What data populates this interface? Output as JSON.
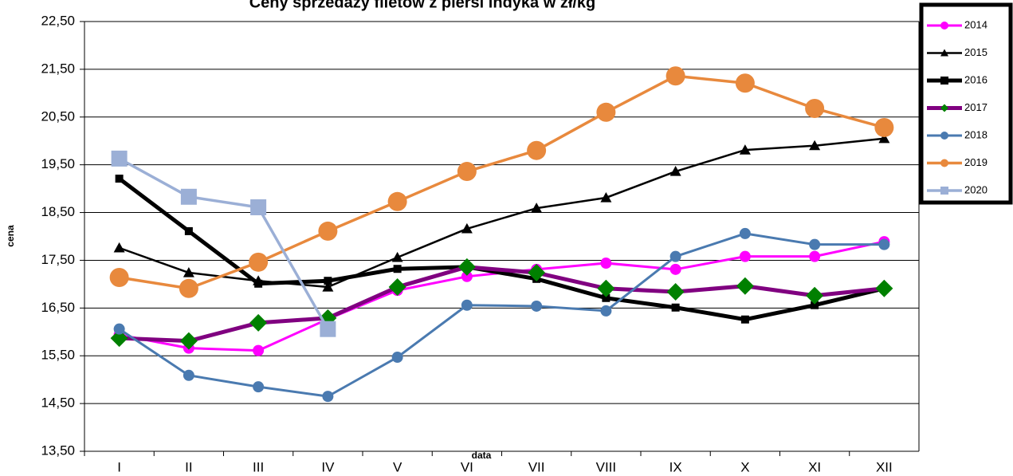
{
  "chart_data": {
    "type": "line",
    "title": "Ceny sprzedaży filetów z  piersi indyka w zł/kg",
    "x_label": "data",
    "y_label": "cena",
    "categories": [
      "I",
      "II",
      "III",
      "IV",
      "V",
      "VI",
      "VII",
      "VIII",
      "IX",
      "X",
      "XI",
      "XII"
    ],
    "ylim": [
      13.5,
      22.5
    ],
    "yticks": [
      {
        "value": 13.5,
        "label": "13,50"
      },
      {
        "value": 14.5,
        "label": "14,50"
      },
      {
        "value": 15.5,
        "label": "15,50"
      },
      {
        "value": 16.5,
        "label": "16,50"
      },
      {
        "value": 17.5,
        "label": "17,50"
      },
      {
        "value": 18.5,
        "label": "18,50"
      },
      {
        "value": 19.5,
        "label": "19,50"
      },
      {
        "value": 20.5,
        "label": "20,50"
      },
      {
        "value": 21.5,
        "label": "21,50"
      },
      {
        "value": 22.5,
        "label": "22,50"
      }
    ],
    "grid": true,
    "legend": "right",
    "series": [
      {
        "name": "2014",
        "color": "#ff00ff",
        "marker": "circle",
        "marker_color": "#ff00ff",
        "line_width": 3,
        "marker_size": 7,
        "values": [
          15.94,
          15.66,
          15.61,
          16.27,
          16.87,
          17.16,
          17.31,
          17.44,
          17.31,
          17.58,
          17.58,
          17.89
        ]
      },
      {
        "name": "2015",
        "color": "#000000",
        "marker": "triangle",
        "marker_color": "#000000",
        "line_width": 2.5,
        "marker_size": 7,
        "values": [
          17.76,
          17.24,
          17.07,
          16.94,
          17.56,
          18.16,
          18.59,
          18.81,
          19.36,
          19.81,
          19.9,
          20.05
        ]
      },
      {
        "name": "2016",
        "color": "#000000",
        "marker": "square",
        "marker_color": "#000000",
        "line_width": 5,
        "marker_size": 5,
        "values": [
          19.21,
          18.11,
          17.01,
          17.07,
          17.32,
          17.36,
          17.11,
          16.71,
          16.51,
          16.26,
          16.56,
          16.91
        ]
      },
      {
        "name": "2017",
        "color": "#800080",
        "marker": "diamond",
        "marker_color": "#008000",
        "line_width": 5,
        "marker_size": 11,
        "values": [
          15.87,
          15.81,
          16.19,
          16.29,
          16.94,
          17.36,
          17.24,
          16.91,
          16.84,
          16.96,
          16.76,
          16.91
        ]
      },
      {
        "name": "2018",
        "color": "#4a7ab0",
        "marker": "circle",
        "marker_color": "#4a7ab0",
        "line_width": 3,
        "marker_size": 7,
        "values": [
          16.06,
          15.09,
          14.85,
          14.65,
          15.47,
          16.56,
          16.54,
          16.44,
          17.58,
          18.06,
          17.83,
          17.83
        ]
      },
      {
        "name": "2019",
        "color": "#e8893d",
        "marker": "circle",
        "marker_color": "#e8893d",
        "line_width": 3.5,
        "marker_size": 12,
        "values": [
          17.14,
          16.91,
          17.46,
          18.11,
          18.73,
          19.36,
          19.8,
          20.6,
          21.36,
          21.21,
          20.68,
          20.28
        ]
      },
      {
        "name": "2020",
        "color": "#9bafd6",
        "marker": "square",
        "marker_color": "#9bafd6",
        "line_width": 3.5,
        "marker_size": 10,
        "values": [
          19.63,
          18.83,
          18.61,
          16.06,
          null,
          null,
          null,
          null,
          null,
          null,
          null,
          null
        ]
      }
    ]
  }
}
